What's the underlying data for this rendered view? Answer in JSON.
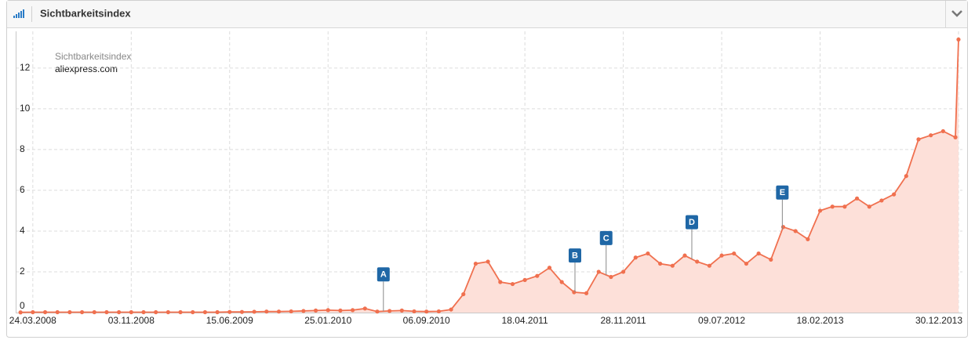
{
  "header": {
    "title": "Sichtbarkeitsindex"
  },
  "chart_data": {
    "type": "area",
    "legend_title": "Sichtbarkeitsindex",
    "x": [
      "25.02.2008",
      "24.03.2008",
      "21.04.2008",
      "19.05.2008",
      "16.06.2008",
      "14.07.2008",
      "11.08.2008",
      "08.09.2008",
      "06.10.2008",
      "03.11.2008",
      "01.12.2008",
      "29.12.2008",
      "26.01.2009",
      "23.02.2009",
      "23.03.2009",
      "20.04.2009",
      "18.05.2009",
      "15.06.2009",
      "13.07.2009",
      "10.08.2009",
      "07.09.2009",
      "05.10.2009",
      "02.11.2009",
      "30.11.2009",
      "28.12.2009",
      "25.01.2010",
      "22.02.2010",
      "22.03.2010",
      "19.04.2010",
      "17.05.2010",
      "14.06.2010",
      "12.07.2010",
      "09.08.2010",
      "06.09.2010",
      "04.10.2010",
      "01.11.2010",
      "29.11.2010",
      "27.12.2010",
      "24.01.2011",
      "21.02.2011",
      "21.03.2011",
      "18.04.2011",
      "16.05.2011",
      "13.06.2011",
      "11.07.2011",
      "08.08.2011",
      "05.09.2011",
      "03.10.2011",
      "31.10.2011",
      "28.11.2011",
      "26.12.2011",
      "23.01.2012",
      "20.02.2012",
      "19.03.2012",
      "16.04.2012",
      "14.05.2012",
      "11.06.2012",
      "09.07.2012",
      "06.08.2012",
      "03.09.2012",
      "01.10.2012",
      "29.10.2012",
      "26.11.2012",
      "24.12.2012",
      "21.01.2013",
      "18.02.2013",
      "18.03.2013",
      "15.04.2013",
      "13.05.2013",
      "10.06.2013",
      "08.07.2013",
      "05.08.2013",
      "02.09.2013",
      "30.09.2013",
      "28.10.2013",
      "25.11.2013",
      "23.12.2013",
      "30.12.2013"
    ],
    "series": [
      {
        "name": "aliexpress.com",
        "color": "#f0704f",
        "fill": "#fde0d9",
        "values": [
          0.01,
          0.02,
          0.02,
          0.02,
          0.02,
          0.02,
          0.02,
          0.02,
          0.02,
          0.02,
          0.02,
          0.02,
          0.02,
          0.02,
          0.02,
          0.02,
          0.02,
          0.03,
          0.03,
          0.04,
          0.05,
          0.05,
          0.06,
          0.08,
          0.1,
          0.12,
          0.1,
          0.12,
          0.2,
          0.05,
          0.08,
          0.1,
          0.06,
          0.05,
          0.06,
          0.15,
          0.9,
          2.4,
          2.5,
          1.5,
          1.4,
          1.6,
          1.8,
          2.2,
          1.5,
          1.0,
          0.95,
          2.0,
          1.75,
          2.0,
          2.7,
          2.9,
          2.4,
          2.3,
          2.8,
          2.5,
          2.3,
          2.8,
          2.9,
          2.4,
          2.9,
          2.6,
          4.2,
          4.0,
          3.6,
          5.0,
          5.2,
          5.2,
          5.6,
          5.2,
          5.5,
          5.8,
          6.7,
          8.5,
          8.7,
          8.9,
          8.6,
          13.4
        ]
      }
    ],
    "xlim": [
      "14.02.2008",
      "08.01.2014"
    ],
    "xticks": [
      "24.03.2008",
      "03.11.2008",
      "15.06.2009",
      "25.01.2010",
      "06.09.2010",
      "18.04.2011",
      "28.11.2011",
      "09.07.2012",
      "18.02.2013",
      "30.12.2013"
    ],
    "ylim": [
      0,
      13.8
    ],
    "yticks": [
      0,
      2,
      4,
      6,
      8,
      10,
      12
    ],
    "grid": true,
    "flags": [
      {
        "label": "A",
        "x": "31.05.2010"
      },
      {
        "label": "B",
        "x": "10.08.2011"
      },
      {
        "label": "C",
        "x": "20.10.2011"
      },
      {
        "label": "D",
        "x": "02.05.2012"
      },
      {
        "label": "E",
        "x": "24.11.2012"
      }
    ],
    "flag_color": "#1f67a6"
  }
}
